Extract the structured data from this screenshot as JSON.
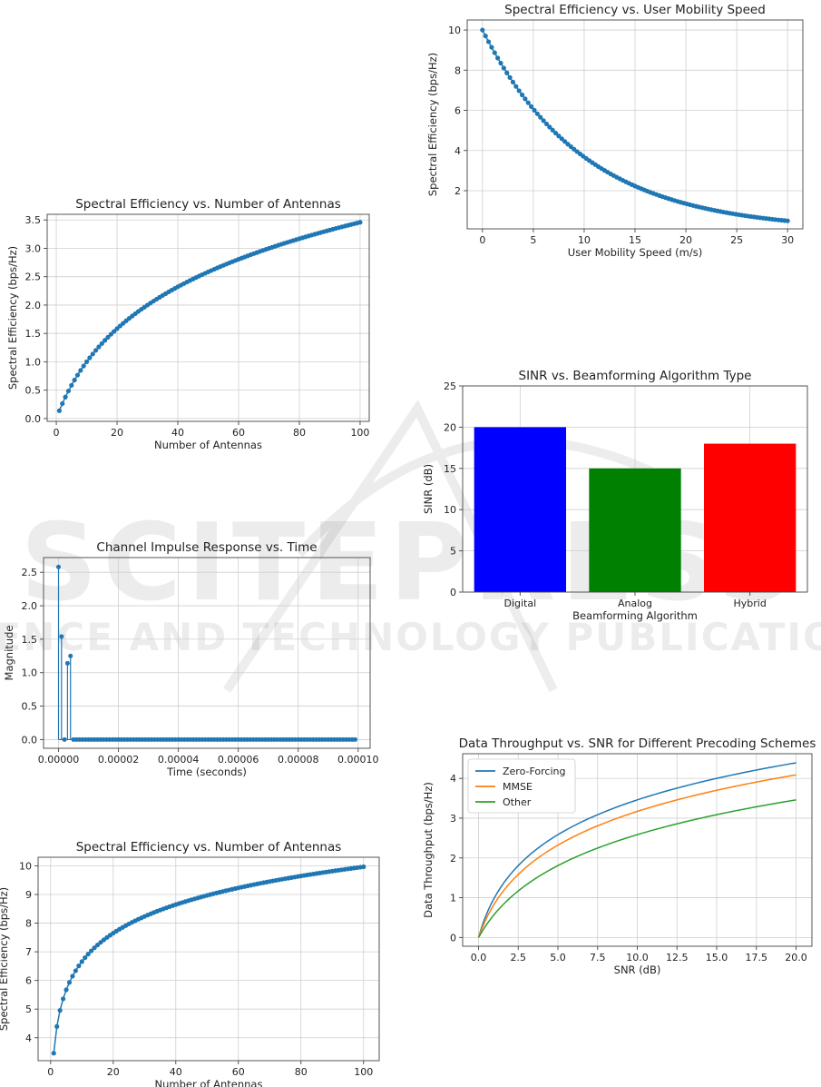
{
  "colors": {
    "series_blue": "#1f77b4",
    "series_orange": "#ff7f0e",
    "series_green": "#2ca02c",
    "bar_digital": "#0000ff",
    "bar_analog": "#008000",
    "bar_hybrid": "#ff0000",
    "stem_baseline": "#d62728"
  },
  "watermark": {
    "line1": "SCITEPRESS",
    "line2": "SCIENCE AND TECHNOLOGY PUBLICATIONS"
  },
  "chart_data": [
    {
      "id": "c1",
      "type": "line",
      "title": "Spectral Efficiency vs. Number of Antennas",
      "xlabel": "Number of Antennas",
      "ylabel": "Spectral Efficiency (bps/Hz)",
      "xlim": [
        -3,
        103
      ],
      "ylim": [
        -0.05,
        3.6
      ],
      "xticks": [
        0,
        20,
        40,
        60,
        80,
        100
      ],
      "yticks": [
        0.0,
        0.5,
        1.0,
        1.5,
        2.0,
        2.5,
        3.0,
        3.5
      ],
      "ytick_decimals": 1,
      "grid": true,
      "markers": true,
      "series": [
        {
          "x_range": [
            1,
            100,
            1
          ],
          "formula": "log2(1+0.1*x)",
          "endpoints": {
            "x1": 0.14,
            "x100": 3.46
          }
        }
      ]
    },
    {
      "id": "c2",
      "type": "line",
      "title": "Spectral Efficiency vs. User Mobility Speed",
      "xlabel": "User Mobility Speed (m/s)",
      "ylabel": "Spectral Efficiency (bps/Hz)",
      "xlim": [
        -1.5,
        31.5
      ],
      "ylim": [
        0.1,
        10.5
      ],
      "xticks": [
        0,
        5,
        10,
        15,
        20,
        25,
        30
      ],
      "yticks": [
        2,
        4,
        6,
        8,
        10
      ],
      "ytick_decimals": 0,
      "grid": true,
      "markers": true,
      "series": [
        {
          "x_range": [
            0,
            30,
            0.3
          ],
          "formula": "10*exp(-0.1*x)",
          "endpoints": {
            "x0": 10.0,
            "x30": 0.5
          }
        }
      ]
    },
    {
      "id": "c3",
      "type": "bar",
      "title": "SINR vs. Beamforming Algorithm Type",
      "xlabel": "Beamforming Algorithm",
      "ylabel": "SINR (dB)",
      "ylim": [
        0,
        25
      ],
      "yticks": [
        0,
        5,
        10,
        15,
        20,
        25
      ],
      "grid": true,
      "categories": [
        "Digital",
        "Analog",
        "Hybrid"
      ],
      "values": [
        20,
        15,
        18
      ],
      "colors": [
        "#0000ff",
        "#008000",
        "#ff0000"
      ]
    },
    {
      "id": "c4",
      "type": "stem",
      "title": "Channel Impulse Response vs. Time",
      "xlabel": "Time (seconds)",
      "ylabel": "Magnitude",
      "xlim": [
        -5e-06,
        0.000104
      ],
      "ylim": [
        -0.13,
        2.72
      ],
      "xticks": [
        0.0,
        2e-05,
        4e-05,
        6e-05,
        8e-05,
        0.0001
      ],
      "xtick_labels": [
        "0.00000",
        "0.00002",
        "0.00004",
        "0.00006",
        "0.00008",
        "0.00010"
      ],
      "yticks": [
        0.0,
        0.5,
        1.0,
        1.5,
        2.0,
        2.5
      ],
      "ytick_decimals": 1,
      "grid": true,
      "x_step": 1e-06,
      "n_points": 100,
      "nonzero": [
        {
          "x": 0.0,
          "y": 2.58
        },
        {
          "x": 1e-06,
          "y": 1.54
        },
        {
          "x": 3e-06,
          "y": 1.14
        },
        {
          "x": 4e-06,
          "y": 1.25
        }
      ]
    },
    {
      "id": "c5",
      "type": "line",
      "title": "Spectral Efficiency vs. Number of Antennas",
      "xlabel": "Number of Antennas",
      "ylabel": "Spectral Efficiency (bps/Hz)",
      "xlim": [
        -4,
        105
      ],
      "ylim": [
        3.2,
        10.3
      ],
      "xticks": [
        0,
        20,
        40,
        60,
        80,
        100
      ],
      "yticks": [
        4,
        5,
        6,
        7,
        8,
        9,
        10
      ],
      "ytick_decimals": 0,
      "grid": true,
      "markers": true,
      "series": [
        {
          "x_range": [
            1,
            100,
            1
          ],
          "formula": "log2(1+10*x)",
          "endpoints": {
            "x1": 3.46,
            "x100": 9.97
          }
        }
      ]
    },
    {
      "id": "c6",
      "type": "line",
      "title": "Data Throughput vs. SNR for Different Precoding Schemes",
      "xlabel": "SNR (dB)",
      "ylabel": "Data Throughput (bps/Hz)",
      "xlim": [
        -1.0,
        21.0
      ],
      "ylim": [
        -0.22,
        4.62
      ],
      "xticks": [
        0.0,
        2.5,
        5.0,
        7.5,
        10.0,
        12.5,
        15.0,
        17.5,
        20.0
      ],
      "yticks": [
        0,
        1,
        2,
        3,
        4
      ],
      "xtick_decimals": 1,
      "ytick_decimals": 0,
      "grid": true,
      "markers": false,
      "legend": "upper-left",
      "series": [
        {
          "name": "Zero-Forcing",
          "formula": "log2(1+x)",
          "at20": 4.39,
          "color": "#1f77b4"
        },
        {
          "name": "MMSE",
          "formula": "log2(1+0.8*x)",
          "at20": 4.09,
          "color": "#ff7f0e"
        },
        {
          "name": "Other",
          "formula": "log2(1+0.5*x)",
          "at20": 3.46,
          "color": "#2ca02c"
        }
      ]
    }
  ]
}
